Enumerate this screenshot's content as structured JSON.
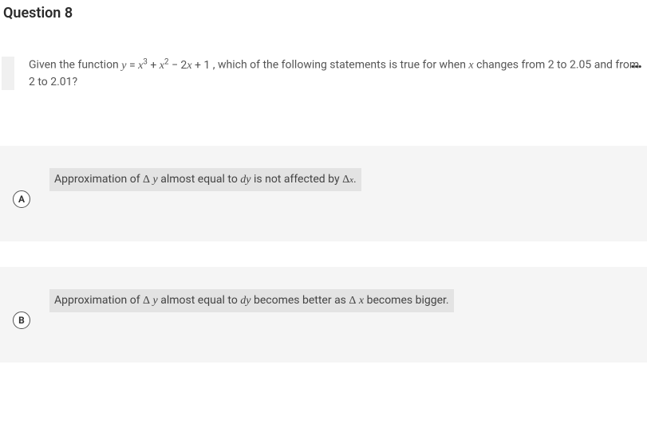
{
  "title": "Question 8",
  "question": {
    "prefix": "Given the function ",
    "formula_html": "<span class='math'>y</span> = <span class='math'>x</span><span class='sup'>3</span> + <span class='math'>x</span><span class='sup'>2</span> − 2<span class='math'>x</span> + 1",
    "mid": ", which of the following statements is true for when ",
    "var": "x",
    "suffix": " changes from 2 to 2.05 and from 2 to 2.01?"
  },
  "options": [
    {
      "letter": "A",
      "html": "Approximation of <span class='delta'>Δ</span> <span class='math'>y</span> almost equal to <span class='math'>dy</span> is not affected by <span class='delta'>Δ</span><span class='math' style='font-size:11px'>x</span>."
    },
    {
      "letter": "B",
      "html": "Approximation of <span class='delta'>Δ</span> <span class='math'>y</span> almost equal to <span class='math'>dy</span> becomes better as <span class='delta'>Δ</span> <span class='math'>x</span> becomes bigger."
    }
  ],
  "colors": {
    "page_bg": "#ffffff",
    "option_bg": "#f5f5f5",
    "option_inner_bg": "#e3e3e3",
    "text": "#333333",
    "muted_text": "#555555"
  }
}
